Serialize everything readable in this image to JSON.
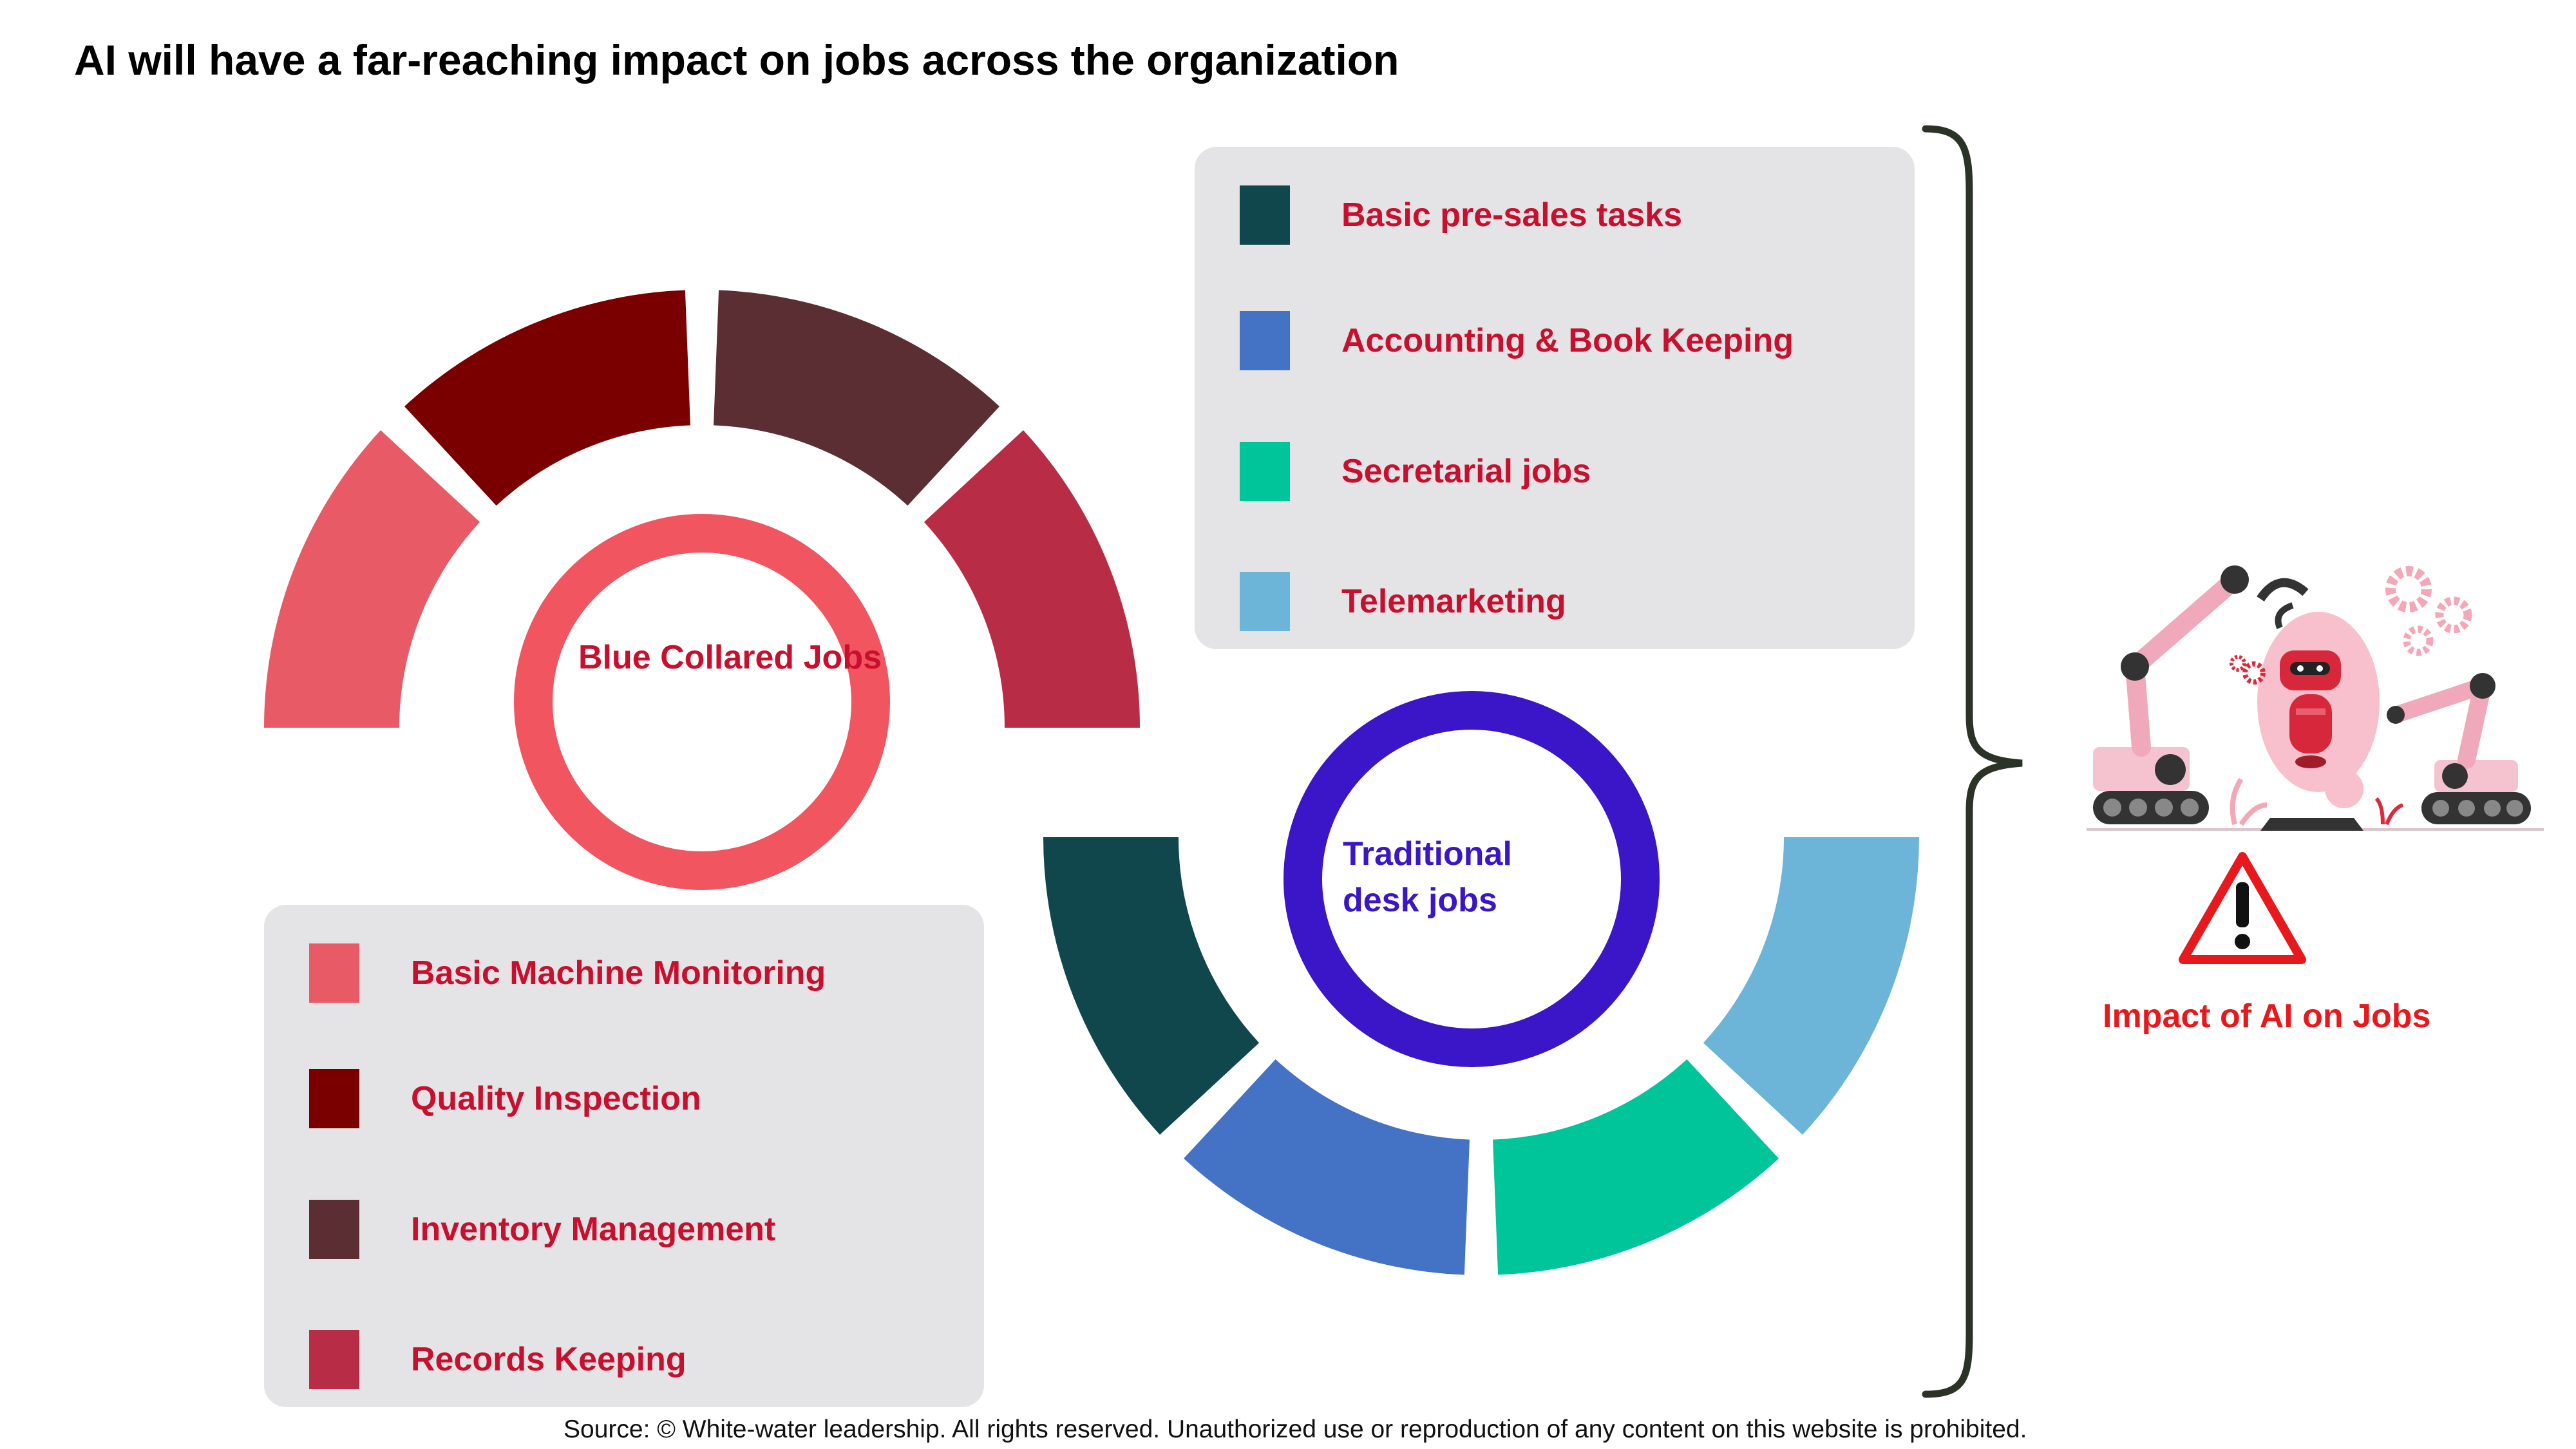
{
  "title": "AI will have a far-reaching impact on jobs across the organization",
  "blue_collar": {
    "center_label": "Blue Collared Jobs",
    "ring_color": "#f05560",
    "center_label_color": "#c8102e",
    "items": [
      {
        "label": "Basic Machine Monitoring",
        "color": "#e85a66"
      },
      {
        "label": "Quality Inspection",
        "color": "#7a0000"
      },
      {
        "label": "Inventory Management",
        "color": "#5b2e33"
      },
      {
        "label": "Records Keeping",
        "color": "#b82c46"
      }
    ]
  },
  "desk": {
    "center_label_line1": "Traditional",
    "center_label_line2": "desk jobs",
    "ring_color": "#3a16c8",
    "center_label_color": "#3a16c8",
    "items": [
      {
        "label": "Basic pre-sales tasks",
        "color": "#10474c"
      },
      {
        "label": "Accounting & Book Keeping",
        "color": "#4472c4"
      },
      {
        "label": "Secretarial jobs",
        "color": "#00c49a"
      },
      {
        "label": "Telemarketing",
        "color": "#6cb4d8"
      }
    ]
  },
  "impact_label": "Impact of AI on Jobs",
  "icons": {
    "illustration": "robot-arms-illustration",
    "warning": "warning-triangle-icon"
  },
  "source": "Source: © White-water leadership. All rights reserved. Unauthorized use or reproduction of any content on this website is prohibited."
}
